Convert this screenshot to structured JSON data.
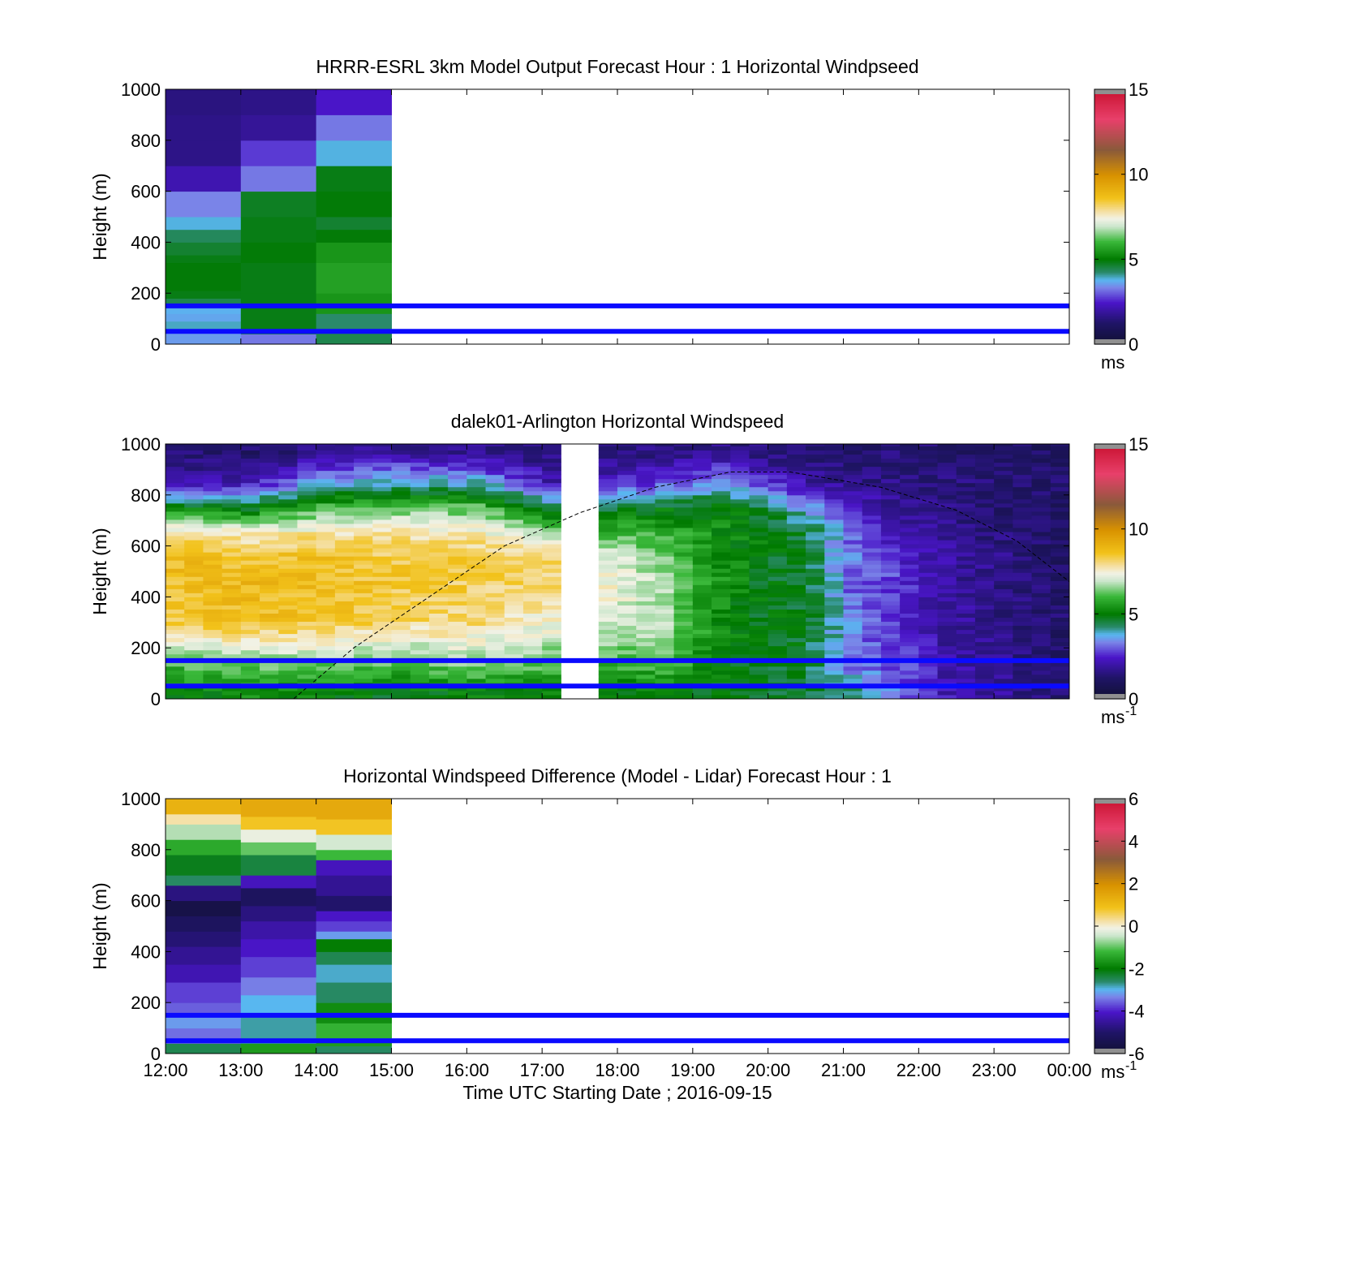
{
  "chart_data": [
    {
      "type": "heatmap",
      "title": "HRRR-ESRL 3km Model Output   Forecast Hour : 1 Horizontal Windpseed",
      "ylabel": "Height (m)",
      "xlabel": "",
      "ylim": [
        0,
        1000
      ],
      "yticks": [
        "0",
        "200",
        "400",
        "600",
        "800",
        "1000"
      ],
      "xlim_hours": [
        12,
        24
      ],
      "colorbar": {
        "range": [
          0,
          15
        ],
        "ticks": [
          "0",
          "5",
          "10",
          "15"
        ],
        "unit": "ms",
        "unit_sup": ""
      },
      "reference_lines_m": [
        50,
        150
      ],
      "columns": [
        {
          "t_start": 12,
          "t_end": 13,
          "cells": [
            [
              0,
              30,
              3.5
            ],
            [
              30,
              60,
              3.5
            ],
            [
              60,
              90,
              3.9
            ],
            [
              90,
              120,
              3.6
            ],
            [
              120,
              150,
              3.7
            ],
            [
              150,
              180,
              4.4
            ],
            [
              180,
              210,
              4.8
            ],
            [
              210,
              320,
              4.9
            ],
            [
              320,
              350,
              4.8
            ],
            [
              350,
              400,
              4.6
            ],
            [
              400,
              450,
              4.3
            ],
            [
              450,
              500,
              3.8
            ],
            [
              500,
              600,
              3.3
            ],
            [
              600,
              700,
              2.1
            ],
            [
              700,
              800,
              1.6
            ],
            [
              800,
              900,
              1.6
            ],
            [
              900,
              1000,
              1.5
            ]
          ]
        },
        {
          "t_start": 13,
          "t_end": 14,
          "cells": [
            [
              0,
              40,
              3.2
            ],
            [
              40,
              60,
              4.6
            ],
            [
              60,
              200,
              4.8
            ],
            [
              200,
              320,
              4.8
            ],
            [
              320,
              400,
              4.9
            ],
            [
              400,
              500,
              4.8
            ],
            [
              500,
              600,
              4.7
            ],
            [
              600,
              700,
              3.2
            ],
            [
              700,
              800,
              2.7
            ],
            [
              800,
              900,
              1.8
            ],
            [
              900,
              1000,
              1.6
            ]
          ]
        },
        {
          "t_start": 14,
          "t_end": 15,
          "cells": [
            [
              0,
              60,
              4.4
            ],
            [
              60,
              120,
              4.2
            ],
            [
              120,
              200,
              5.4
            ],
            [
              200,
              320,
              5.6
            ],
            [
              320,
              400,
              5.4
            ],
            [
              400,
              450,
              4.9
            ],
            [
              450,
              500,
              4.6
            ],
            [
              500,
              600,
              4.9
            ],
            [
              600,
              700,
              4.8
            ],
            [
              700,
              800,
              3.8
            ],
            [
              800,
              900,
              3.2
            ],
            [
              900,
              1000,
              2.4
            ]
          ]
        }
      ]
    },
    {
      "type": "heatmap",
      "title": "dalek01-Arlington  Horizontal Windspeed",
      "ylabel": "Height (m)",
      "xlabel": "",
      "ylim": [
        0,
        1000
      ],
      "yticks": [
        "0",
        "200",
        "400",
        "600",
        "800",
        "1000"
      ],
      "xlim_hours": [
        12,
        24
      ],
      "colorbar": {
        "range": [
          0,
          15
        ],
        "ticks": [
          "0",
          "5",
          "10",
          "15"
        ],
        "unit": "ms",
        "unit_sup": "-1"
      },
      "reference_lines_m": [
        50,
        150
      ],
      "data_gap_hours": [
        17.3,
        17.6
      ],
      "profiles": [
        {
          "t": 12.0,
          "s": [
            5.0,
            6.2,
            8.3,
            8.6,
            8.7,
            8.0,
            5.0,
            2.0,
            1.3
          ]
        },
        {
          "t": 13.0,
          "s": [
            5.2,
            6.5,
            8.6,
            8.8,
            8.5,
            7.6,
            4.8,
            2.2,
            1.2
          ]
        },
        {
          "t": 14.0,
          "s": [
            5.0,
            6.4,
            8.4,
            8.6,
            8.6,
            7.8,
            6.0,
            3.6,
            1.6
          ]
        },
        {
          "t": 15.0,
          "s": [
            4.8,
            6.3,
            8.0,
            8.4,
            8.3,
            7.8,
            6.2,
            3.9,
            1.8
          ]
        },
        {
          "t": 16.0,
          "s": [
            5.0,
            6.6,
            8.0,
            8.2,
            8.3,
            7.6,
            6.2,
            3.8,
            1.7
          ]
        },
        {
          "t": 17.0,
          "s": [
            5.0,
            6.2,
            7.4,
            8.0,
            8.3,
            6.6,
            4.5,
            2.1,
            1.4
          ]
        },
        {
          "t": 17.8,
          "s": [
            4.8,
            6.0,
            7.0,
            7.5,
            7.2,
            6.0,
            4.6,
            2.4,
            1.4
          ]
        },
        {
          "t": 18.5,
          "s": [
            5.0,
            6.2,
            6.8,
            6.6,
            6.3,
            5.8,
            4.8,
            2.8,
            1.6
          ]
        },
        {
          "t": 19.2,
          "s": [
            4.8,
            5.0,
            5.2,
            5.4,
            5.4,
            5.3,
            5.0,
            3.5,
            1.6
          ]
        },
        {
          "t": 19.8,
          "s": [
            4.6,
            4.8,
            4.8,
            4.8,
            4.8,
            4.9,
            4.6,
            2.6,
            1.4
          ]
        },
        {
          "t": 20.4,
          "s": [
            4.6,
            4.6,
            4.7,
            4.6,
            4.6,
            4.5,
            3.6,
            2.0,
            1.3
          ]
        },
        {
          "t": 21.0,
          "s": [
            4.2,
            3.0,
            3.4,
            3.0,
            3.2,
            3.0,
            2.4,
            1.6,
            1.3
          ]
        },
        {
          "t": 21.6,
          "s": [
            3.2,
            2.8,
            2.6,
            2.8,
            2.6,
            2.2,
            1.8,
            1.6,
            1.4
          ]
        },
        {
          "t": 22.2,
          "s": [
            2.2,
            2.0,
            2.0,
            1.9,
            1.9,
            1.8,
            1.6,
            1.5,
            1.3
          ]
        },
        {
          "t": 23.0,
          "s": [
            1.8,
            1.7,
            1.6,
            1.5,
            1.6,
            1.4,
            1.3,
            1.3,
            1.2
          ]
        },
        {
          "t": 23.8,
          "s": [
            1.3,
            1.2,
            1.2,
            1.2,
            1.1,
            1.1,
            1.1,
            1.2,
            1.0
          ]
        }
      ],
      "profile_heights_m": [
        25,
        150,
        300,
        450,
        550,
        650,
        750,
        850,
        970
      ],
      "boundary_curve": [
        [
          13.7,
          0
        ],
        [
          14.5,
          200
        ],
        [
          15.5,
          400
        ],
        [
          16.5,
          600
        ],
        [
          17.5,
          730
        ],
        [
          18.5,
          830
        ],
        [
          19.5,
          890
        ],
        [
          20.3,
          890
        ],
        [
          21.5,
          830
        ],
        [
          22.5,
          740
        ],
        [
          23.3,
          620
        ],
        [
          24.0,
          460
        ]
      ]
    },
    {
      "type": "heatmap",
      "title": "Horizontal Windspeed Difference (Model - Lidar) Forecast Hour : 1",
      "ylabel": "Height (m)",
      "xlabel": "Time UTC  Starting Date ; 2016-09-15",
      "ylim": [
        0,
        1000
      ],
      "yticks": [
        "0",
        "200",
        "400",
        "600",
        "800",
        "1000"
      ],
      "xticks": [
        "12:00",
        "13:00",
        "14:00",
        "15:00",
        "16:00",
        "17:00",
        "18:00",
        "19:00",
        "20:00",
        "21:00",
        "22:00",
        "23:00",
        "00:00"
      ],
      "xlim_hours": [
        12,
        24
      ],
      "colorbar": {
        "range": [
          -6,
          6
        ],
        "ticks": [
          "-6",
          "-4",
          "-2",
          "0",
          "2",
          "4",
          "6"
        ],
        "unit": "ms",
        "unit_sup": "-1"
      },
      "reference_lines_m": [
        50,
        150
      ],
      "columns": [
        {
          "t_start": 12,
          "t_end": 13,
          "cells": [
            [
              0,
              40,
              -2.5
            ],
            [
              40,
              100,
              -3.5
            ],
            [
              100,
              150,
              -3.2
            ],
            [
              150,
              200,
              -3.6
            ],
            [
              200,
              280,
              -3.8
            ],
            [
              280,
              350,
              -4.3
            ],
            [
              350,
              420,
              -4.6
            ],
            [
              420,
              480,
              -4.9
            ],
            [
              480,
              540,
              -5.2
            ],
            [
              540,
              600,
              -5.6
            ],
            [
              600,
              660,
              -4.8
            ],
            [
              660,
              700,
              -2.6
            ],
            [
              700,
              780,
              -2.2
            ],
            [
              780,
              840,
              -1.4
            ],
            [
              840,
              900,
              -0.6
            ],
            [
              900,
              940,
              0.2
            ],
            [
              940,
              1000,
              1.2
            ]
          ]
        },
        {
          "t_start": 13,
          "t_end": 14,
          "cells": [
            [
              0,
              40,
              -1.6
            ],
            [
              40,
              150,
              -2.8
            ],
            [
              150,
              230,
              -3.0
            ],
            [
              230,
              300,
              -3.4
            ],
            [
              300,
              380,
              -3.8
            ],
            [
              380,
              450,
              -4.1
            ],
            [
              450,
              520,
              -4.4
            ],
            [
              520,
              580,
              -4.8
            ],
            [
              580,
              650,
              -5.2
            ],
            [
              650,
              700,
              -4.2
            ],
            [
              700,
              780,
              -2.4
            ],
            [
              780,
              830,
              -1.0
            ],
            [
              830,
              880,
              -0.2
            ],
            [
              880,
              930,
              0.8
            ],
            [
              930,
              1000,
              1.4
            ]
          ]
        },
        {
          "t_start": 14,
          "t_end": 15,
          "cells": [
            [
              0,
              30,
              -2.6
            ],
            [
              30,
              60,
              -1.6
            ],
            [
              60,
              120,
              -1.3
            ],
            [
              120,
              200,
              -1.8
            ],
            [
              200,
              280,
              -2.6
            ],
            [
              280,
              350,
              -2.9
            ],
            [
              350,
              400,
              -2.5
            ],
            [
              400,
              450,
              -2.0
            ],
            [
              450,
              480,
              -3.2
            ],
            [
              480,
              520,
              -3.8
            ],
            [
              520,
              560,
              -4.1
            ],
            [
              560,
              620,
              -5.0
            ],
            [
              620,
              700,
              -4.6
            ],
            [
              700,
              760,
              -4.2
            ],
            [
              760,
              800,
              -1.2
            ],
            [
              800,
              860,
              -0.4
            ],
            [
              860,
              920,
              0.8
            ],
            [
              920,
              1000,
              1.4
            ]
          ]
        }
      ]
    }
  ]
}
